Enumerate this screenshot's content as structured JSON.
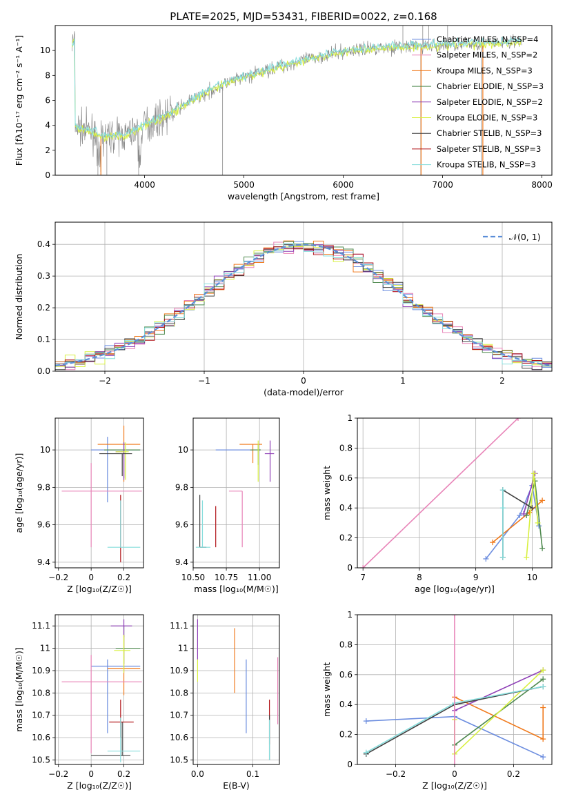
{
  "figure": {
    "title": "PLATE=2025, MJD=53431, FIBERID=0022, z=0.168"
  },
  "colors": {
    "chabrier": "#6c8ddf",
    "salpeter": "#f07a1c",
    "kroupa": "#4f8a4f",
    "purple": "#8e3fb6",
    "lime": "#d8f040",
    "dark": "#404040",
    "red": "#b2161b",
    "cyan": "#86dddc",
    "pink": "#e884b8",
    "gray": "#8b8b8b",
    "normal": "#5b8ed8"
  },
  "chart_data": [
    {
      "id": "spectrum",
      "type": "line",
      "xlabel": "wavelength [Angstrom, rest frame]",
      "ylabel": "Flux [fλ10⁻¹⁷ erg cm⁻² s⁻¹ A⁻¹]",
      "xlim": [
        3100,
        8100
      ],
      "ylim": [
        0,
        12
      ],
      "xticks": [
        4000,
        5000,
        6000,
        7000,
        8000
      ],
      "yticks": [
        0,
        2,
        4,
        6,
        8,
        10
      ],
      "legend_position": "upper-right",
      "legend": [
        {
          "label": "Chabrier MILES, N_SSP=4",
          "color": "#6c8ddf"
        },
        {
          "label": "Salpeter MILES, N_SSP=2",
          "color": "#e884b8"
        },
        {
          "label": "Kroupa MILES, N_SSP=3",
          "color": "#f07a1c"
        },
        {
          "label": "Chabrier ELODIE, N_SSP=3",
          "color": "#4f8a4f"
        },
        {
          "label": "Salpeter ELODIE, N_SSP=2",
          "color": "#8e3fb6"
        },
        {
          "label": "Kroupa ELODIE, N_SSP=3",
          "color": "#d8f040"
        },
        {
          "label": "Chabrier STELIB, N_SSP=3",
          "color": "#404040"
        },
        {
          "label": "Salpeter STELIB, N_SSP=3",
          "color": "#b2161b"
        },
        {
          "label": "Kroupa STELIB, N_SSP=3",
          "color": "#86dddc"
        }
      ],
      "continuum": {
        "wavelength": [
          3300,
          3450,
          3600,
          3800,
          4000,
          4200,
          4500,
          4800,
          5100,
          5400,
          5700,
          6000,
          6300,
          6600,
          6900,
          7200,
          7500,
          7700,
          7900
        ],
        "flux": [
          3.9,
          3.5,
          3.1,
          3.2,
          4.0,
          4.7,
          6.1,
          7.3,
          8.1,
          8.8,
          9.4,
          9.9,
          10.2,
          10.3,
          10.4,
          10.5,
          10.6,
          10.7,
          10.6
        ]
      }
    },
    {
      "id": "residuals",
      "type": "histogram",
      "xlabel": "(data-model)/error",
      "ylabel": "Normed distribution",
      "xlim": [
        -2.5,
        2.5
      ],
      "ylim": [
        0,
        0.47
      ],
      "xticks": [
        -2,
        -1,
        0,
        1,
        2
      ],
      "yticks": [
        0.0,
        0.1,
        0.2,
        0.3,
        0.4
      ],
      "bin_width": 0.1,
      "grid": true,
      "legend": [
        {
          "label": "𝒩(0, 1)",
          "style": "dashed",
          "color": "#5b8ed8"
        }
      ]
    },
    {
      "id": "age-vs-Z",
      "type": "errorbar",
      "xlabel": "Z [log₁₀(Z/Z☉)]",
      "ylabel": "age  [log₁₀(age/yr)]",
      "xlim": [
        -0.22,
        0.32
      ],
      "ylim": [
        9.37,
        10.17
      ],
      "xticks": [
        -0.2,
        0.0,
        0.2
      ],
      "yticks": [
        9.4,
        9.6,
        9.8,
        10.0
      ],
      "grid": true,
      "points": [
        {
          "x": 0.1,
          "y": 10.0,
          "xerr": [
            0.1,
            0.2
          ],
          "yerr": [
            0.28,
            0.07
          ],
          "color": "#6c8ddf"
        },
        {
          "x": 0.2,
          "y": 10.03,
          "xerr": [
            0.16,
            0.1
          ],
          "yerr": [
            0.2,
            0.1
          ],
          "color": "#f07a1c"
        },
        {
          "x": 0.2,
          "y": 10.0,
          "xerr": [
            0.12,
            0.1
          ],
          "yerr": [
            0.15,
            0.04
          ],
          "color": "#4f8a4f"
        },
        {
          "x": 0.2,
          "y": 9.99,
          "xerr": [
            0.05,
            0.0
          ],
          "yerr": [
            0.15,
            0.05
          ],
          "color": "#8e3fb6"
        },
        {
          "x": 0.21,
          "y": 9.99,
          "xerr": [
            0.06,
            0.02
          ],
          "yerr": [
            0.15,
            0.05
          ],
          "color": "#d8f040"
        },
        {
          "x": 0.19,
          "y": 9.98,
          "xerr": [
            0.14,
            0.06
          ],
          "yerr": [
            0.12,
            0.0
          ],
          "color": "#404040"
        },
        {
          "x": 0.18,
          "y": 9.48,
          "xerr": [
            0.0,
            0.0
          ],
          "yerr": [
            0.08,
            0.28
          ],
          "color": "#b2161b"
        },
        {
          "x": 0.18,
          "y": 9.48,
          "xerr": [
            0.08,
            0.12
          ],
          "yerr": [
            0.0,
            0.25
          ],
          "color": "#86dddc"
        },
        {
          "x": 0.0,
          "y": 9.78,
          "xerr": [
            0.18,
            0.31
          ],
          "yerr": [
            0.3,
            0.15
          ],
          "color": "#e884b8"
        }
      ]
    },
    {
      "id": "age-vs-mass",
      "type": "errorbar",
      "xlabel": "mass [log₁₀(M/M☉)]",
      "ylabel": "",
      "xlim": [
        10.5,
        11.15
      ],
      "ylim": [
        9.37,
        10.17
      ],
      "xticks": [
        10.5,
        10.75,
        11.0
      ],
      "xticklabels": [
        "10.50",
        "10.75",
        "11.00"
      ],
      "yticks": [
        9.4,
        9.6,
        9.8,
        10.0
      ],
      "grid": true,
      "points": [
        {
          "x": 10.87,
          "y": 10.0,
          "xerr": [
            0.2,
            0.08
          ],
          "yerr": [
            0.0,
            0.0
          ],
          "color": "#6c8ddf"
        },
        {
          "x": 10.95,
          "y": 10.03,
          "xerr": [
            0.1,
            0.07
          ],
          "yerr": [
            0.1,
            0.0
          ],
          "color": "#f07a1c"
        },
        {
          "x": 10.99,
          "y": 10.0,
          "xerr": [
            0.06,
            0.02
          ],
          "yerr": [
            0.08,
            0.03
          ],
          "color": "#4f8a4f"
        },
        {
          "x": 11.08,
          "y": 9.98,
          "xerr": [
            0.04,
            0.03
          ],
          "yerr": [
            0.15,
            0.07
          ],
          "color": "#8e3fb6"
        },
        {
          "x": 10.99,
          "y": 9.98,
          "xerr": [
            0.0,
            0.0
          ],
          "yerr": [
            0.15,
            0.07
          ],
          "color": "#d8f040"
        },
        {
          "x": 10.55,
          "y": 9.48,
          "xerr": [
            0.0,
            0.05
          ],
          "yerr": [
            0.0,
            0.28
          ],
          "color": "#404040"
        },
        {
          "x": 10.67,
          "y": 9.48,
          "xerr": [
            0.0,
            0.0
          ],
          "yerr": [
            0.0,
            0.22
          ],
          "color": "#b2161b"
        },
        {
          "x": 10.57,
          "y": 9.48,
          "xerr": [
            0.05,
            0.06
          ],
          "yerr": [
            0.0,
            0.25
          ],
          "color": "#86dddc"
        },
        {
          "x": 10.87,
          "y": 9.78,
          "xerr": [
            0.1,
            0.0
          ],
          "yerr": [
            0.3,
            0.0
          ],
          "color": "#e884b8"
        }
      ]
    },
    {
      "id": "massweight-vs-age",
      "type": "line",
      "xlabel": "age  [log₁₀(age/yr)]",
      "ylabel": "mass weight",
      "xlim": [
        6.9,
        10.35
      ],
      "ylim": [
        0,
        1.0
      ],
      "xticks": [
        7,
        8,
        9,
        10
      ],
      "yticks": [
        0.0,
        0.2,
        0.4,
        0.6,
        0.8,
        1.0
      ],
      "grid": true,
      "series": [
        {
          "color": "#6c8ddf",
          "x": [
            9.18,
            9.78,
            10.0,
            10.12
          ],
          "y": [
            0.06,
            0.35,
            0.55,
            0.28
          ]
        },
        {
          "color": "#f07a1c",
          "x": [
            9.3,
            9.95,
            10.18
          ],
          "y": [
            0.17,
            0.37,
            0.45
          ]
        },
        {
          "color": "#4f8a4f",
          "x": [
            9.9,
            10.05,
            10.18
          ],
          "y": [
            0.35,
            0.58,
            0.13
          ]
        },
        {
          "color": "#8e3fb6",
          "x": [
            9.85,
            10.05
          ],
          "y": [
            0.36,
            0.63
          ]
        },
        {
          "color": "#d8f040",
          "x": [
            9.9,
            10.03,
            10.1
          ],
          "y": [
            0.07,
            0.63,
            0.3
          ]
        },
        {
          "color": "#404040",
          "x": [
            9.48,
            9.48,
            10.0
          ],
          "y": [
            0.07,
            0.52,
            0.4
          ]
        },
        {
          "color": "#86dddc",
          "x": [
            9.48,
            9.48,
            9.48
          ],
          "y": [
            0.07,
            0.4,
            0.52
          ]
        },
        {
          "color": "#e884b8",
          "x": [
            7.0,
            9.75
          ],
          "y": [
            0.0,
            1.0
          ]
        }
      ]
    },
    {
      "id": "mass-vs-Z",
      "type": "errorbar",
      "xlabel": "Z [log₁₀(Z/Z☉)]",
      "ylabel": "mass [log₁₀(M/M☉)]",
      "xlim": [
        -0.22,
        0.32
      ],
      "ylim": [
        10.48,
        11.15
      ],
      "xticks": [
        -0.2,
        0.0,
        0.2
      ],
      "yticks": [
        10.5,
        10.6,
        10.7,
        10.8,
        10.9,
        11.0,
        11.1
      ],
      "grid": true,
      "points": [
        {
          "x": 0.1,
          "y": 10.92,
          "xerr": [
            0.1,
            0.2
          ],
          "yerr": [
            0.3,
            0.03
          ],
          "color": "#6c8ddf"
        },
        {
          "x": 0.2,
          "y": 10.91,
          "xerr": [
            0.1,
            0.1
          ],
          "yerr": [
            0.12,
            0.15
          ],
          "color": "#f07a1c"
        },
        {
          "x": 0.2,
          "y": 11.0,
          "xerr": [
            0.05,
            0.1
          ],
          "yerr": [
            0.07,
            0.1
          ],
          "color": "#4f8a4f"
        },
        {
          "x": 0.2,
          "y": 11.1,
          "xerr": [
            0.08,
            0.05
          ],
          "yerr": [
            0.05,
            0.03
          ],
          "color": "#8e3fb6"
        },
        {
          "x": 0.2,
          "y": 10.99,
          "xerr": [
            0.06,
            0.04
          ],
          "yerr": [
            0.1,
            0.07
          ],
          "color": "#d8f040"
        },
        {
          "x": 0.19,
          "y": 10.52,
          "xerr": [
            0.19,
            0.05
          ],
          "yerr": [
            0.0,
            0.15
          ],
          "color": "#404040"
        },
        {
          "x": 0.18,
          "y": 10.67,
          "xerr": [
            0.07,
            0.08
          ],
          "yerr": [
            0.07,
            0.1
          ],
          "color": "#b2161b"
        },
        {
          "x": 0.18,
          "y": 10.54,
          "xerr": [
            0.08,
            0.12
          ],
          "yerr": [
            0.05,
            0.15
          ],
          "color": "#86dddc"
        },
        {
          "x": 0.0,
          "y": 10.85,
          "xerr": [
            0.18,
            0.31
          ],
          "yerr": [
            0.32,
            0.12
          ],
          "color": "#e884b8"
        }
      ]
    },
    {
      "id": "mass-vs-ebv",
      "type": "errorbar",
      "xlabel": "E(B-V)",
      "ylabel": "",
      "xlim": [
        -0.008,
        0.148
      ],
      "ylim": [
        10.48,
        11.15
      ],
      "xticks": [
        0.0,
        0.1
      ],
      "xticklabels": [
        "0.0",
        "0.1"
      ],
      "yticks": [
        10.5,
        10.6,
        10.7,
        10.8,
        10.9,
        11.0,
        11.1
      ],
      "grid": true,
      "points": [
        {
          "x": 0.0,
          "y": 11.05,
          "xerr": [
            0,
            0
          ],
          "yerr": [
            0.1,
            0.08
          ],
          "color": "#8e3fb6"
        },
        {
          "x": 0.0,
          "y": 10.9,
          "xerr": [
            0,
            0
          ],
          "yerr": [
            0.05,
            0.05
          ],
          "color": "#d8f040"
        },
        {
          "x": 0.067,
          "y": 10.95,
          "xerr": [
            0,
            0
          ],
          "yerr": [
            0.15,
            0.14
          ],
          "color": "#f07a1c"
        },
        {
          "x": 0.088,
          "y": 10.78,
          "xerr": [
            0,
            0
          ],
          "yerr": [
            0.16,
            0.17
          ],
          "color": "#6c8ddf"
        },
        {
          "x": 0.13,
          "y": 10.65,
          "xerr": [
            0,
            0
          ],
          "yerr": [
            0.08,
            0.12
          ],
          "color": "#b2161b"
        },
        {
          "x": 0.13,
          "y": 10.6,
          "xerr": [
            0,
            0
          ],
          "yerr": [
            0.1,
            0.1
          ],
          "color": "#404040"
        },
        {
          "x": 0.13,
          "y": 10.58,
          "xerr": [
            0,
            0
          ],
          "yerr": [
            0.08,
            0.1
          ],
          "color": "#86dddc"
        },
        {
          "x": 0.145,
          "y": 10.8,
          "xerr": [
            0,
            0
          ],
          "yerr": [
            0.14,
            0.16
          ],
          "color": "#e884b8"
        }
      ]
    },
    {
      "id": "massweight-vs-Z",
      "type": "line",
      "xlabel": "Z [log₁₀(Z/Z☉)]",
      "ylabel": "mass weight",
      "xlim": [
        -0.33,
        0.33
      ],
      "ylim": [
        0,
        1.0
      ],
      "xticks": [
        -0.2,
        0.0,
        0.2
      ],
      "yticks": [
        0.0,
        0.2,
        0.4,
        0.6,
        0.8,
        1.0
      ],
      "grid": true,
      "series": [
        {
          "color": "#6c8ddf",
          "x": [
            -0.3,
            0.0,
            0.3
          ],
          "y": [
            0.29,
            0.32,
            0.05
          ]
        },
        {
          "color": "#f07a1c",
          "x": [
            0.0,
            0.3,
            0.3
          ],
          "y": [
            0.45,
            0.17,
            0.38
          ]
        },
        {
          "color": "#4f8a4f",
          "x": [
            0.0,
            0.3
          ],
          "y": [
            0.13,
            0.57
          ]
        },
        {
          "color": "#8e3fb6",
          "x": [
            0.0,
            0.3
          ],
          "y": [
            0.36,
            0.63
          ]
        },
        {
          "color": "#d8f040",
          "x": [
            0.0,
            0.0,
            0.3
          ],
          "y": [
            0.3,
            0.07,
            0.63
          ]
        },
        {
          "color": "#404040",
          "x": [
            -0.3,
            0.0,
            0.3
          ],
          "y": [
            0.07,
            0.4,
            0.52
          ]
        },
        {
          "color": "#86dddc",
          "x": [
            -0.3,
            0.0,
            0.3
          ],
          "y": [
            0.08,
            0.41,
            0.52
          ]
        },
        {
          "color": "#e884b8",
          "x": [
            0.0,
            0.0
          ],
          "y": [
            0.0,
            1.0
          ]
        }
      ]
    }
  ]
}
